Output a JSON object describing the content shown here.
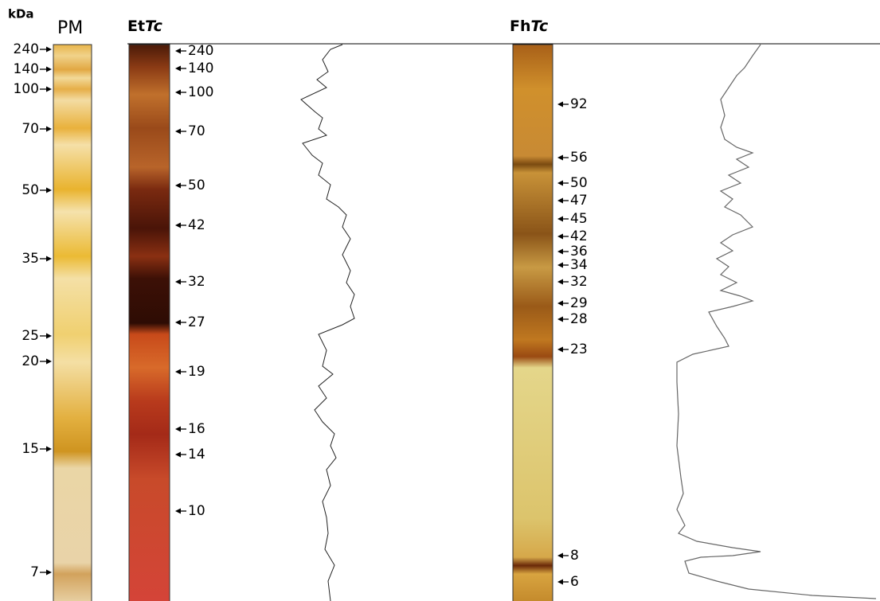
{
  "header": {
    "unit": "kDa"
  },
  "lanes": [
    {
      "label": "PM",
      "markers": [
        240,
        140,
        100,
        70,
        50,
        35,
        25,
        20,
        15,
        7
      ]
    },
    {
      "label_bold": "Et",
      "label_italic": "Tc",
      "markers": [
        240,
        140,
        100,
        70,
        50,
        42,
        32,
        27,
        19,
        16,
        14,
        10
      ]
    },
    {
      "label_bold": "Fh",
      "label_italic": "Tc",
      "markers": [
        92,
        56,
        50,
        47,
        45,
        42,
        36,
        34,
        32,
        29,
        28,
        23,
        8,
        6
      ]
    }
  ]
}
